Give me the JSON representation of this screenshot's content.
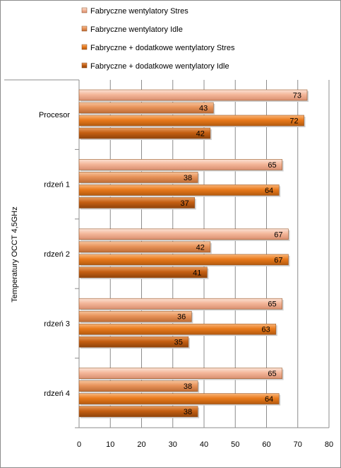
{
  "chart_data": {
    "type": "bar",
    "orientation": "horizontal",
    "title": "",
    "ylabel": "Temperatury OCCT 4,5GHz",
    "xlabel": "",
    "categories": [
      "Procesor",
      "rdzeń 1",
      "rdzeń 2",
      "rdzeń 3",
      "rdzeń 4"
    ],
    "xlim": [
      0,
      80
    ],
    "x_ticks": [
      "0",
      "10",
      "20",
      "30",
      "40",
      "50",
      "60",
      "70",
      "80"
    ],
    "grid": "vertical",
    "legend_position": "top",
    "series": [
      {
        "name": "Fabryczne  wentylatory Stres",
        "color": "#f4b79a",
        "values": [
          73,
          65,
          67,
          65,
          65
        ]
      },
      {
        "name": "Fabryczne  wentylatory Idle",
        "color": "#e8935a",
        "values": [
          43,
          38,
          42,
          36,
          38
        ]
      },
      {
        "name": "Fabryczne + dodatkowe  wentylatory Stres",
        "color": "#e97a1c",
        "values": [
          72,
          64,
          67,
          63,
          64
        ]
      },
      {
        "name": "Fabryczne + dodatkowe  wentylatory Idle",
        "color": "#c55f12",
        "values": [
          42,
          37,
          41,
          35,
          38
        ]
      }
    ]
  }
}
